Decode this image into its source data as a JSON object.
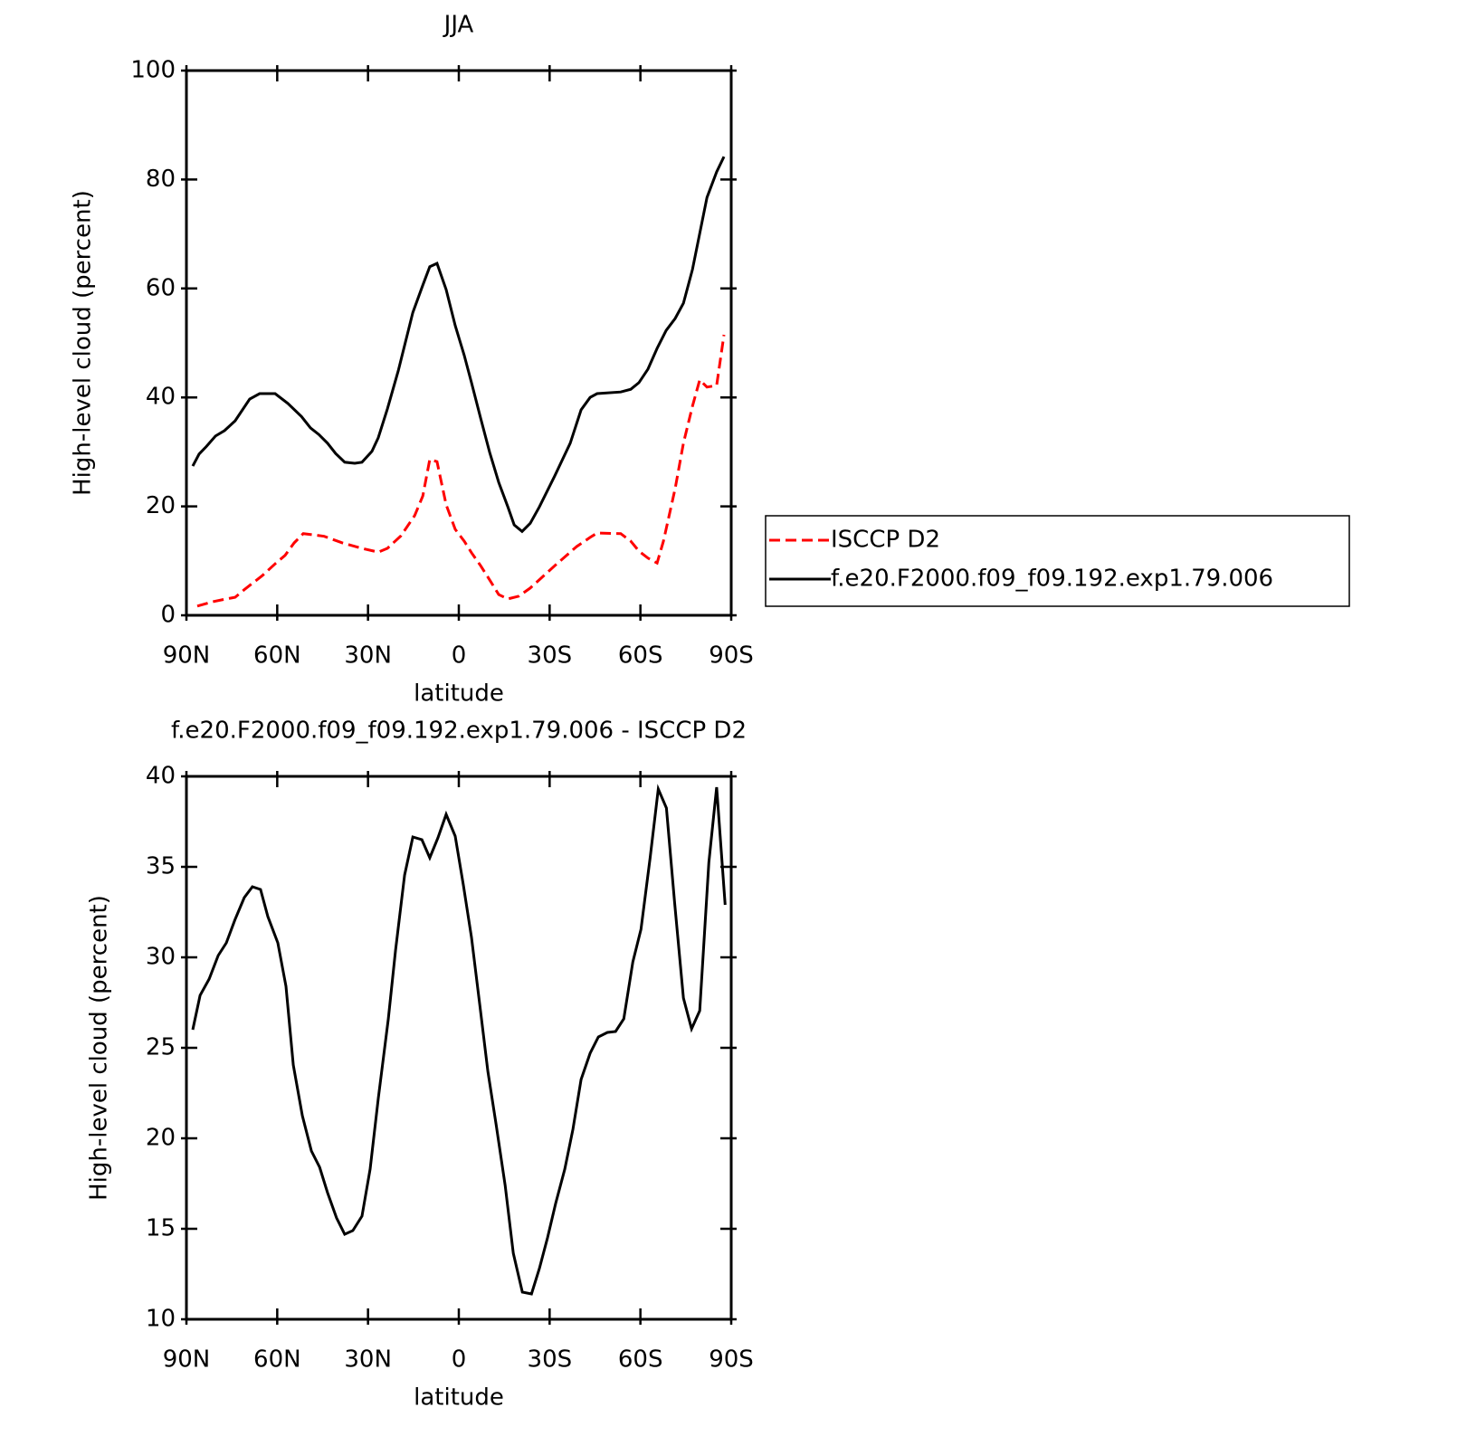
{
  "chart_data": [
    {
      "type": "line",
      "title": "JJA",
      "x_label": "latitude",
      "y_label": "High-level cloud (percent)",
      "xlim": [
        90,
        -90
      ],
      "xticks": [
        {
          "value": 90,
          "label": "90N"
        },
        {
          "value": 60,
          "label": "60N"
        },
        {
          "value": 30,
          "label": "30N"
        },
        0,
        {
          "value": -30,
          "label": "30S"
        },
        {
          "value": -60,
          "label": "60S"
        },
        {
          "value": -90,
          "label": "90S"
        }
      ],
      "ylim": [
        0,
        100
      ],
      "yticks": [
        0,
        20,
        40,
        60,
        80,
        100
      ],
      "legend": "right",
      "series": [
        {
          "name": "ISCCP D2",
          "color": "#ff0000",
          "dash": true,
          "x": [
            86.4,
            81.3,
            76.8,
            73.9,
            70.9,
            64.9,
            60.4,
            57.4,
            54.4,
            51.4,
            48.4,
            44.5,
            38.5,
            32,
            26.6,
            23.6,
            19.1,
            14.6,
            11.9,
            9.6,
            7.2,
            4.2,
            1.2,
            -1.8,
            -4.2,
            -7.2,
            -10.2,
            -13.2,
            -16.2,
            -19.8,
            -23.6,
            -31.7,
            -38.9,
            -43.4,
            -45.7,
            -53.5,
            -56.8,
            -59.5,
            -62.5,
            -65.5,
            -67.6,
            -71.5,
            -74.2,
            -77.2,
            -79.6,
            -82,
            -85.2,
            -87.6
          ],
          "values": [
            1.7,
            2.5,
            3,
            3.3,
            4.7,
            7.3,
            9.6,
            11,
            13.3,
            15,
            14.8,
            14.5,
            13.3,
            12.3,
            11.6,
            12.3,
            14.6,
            18.3,
            21.9,
            28.6,
            28.2,
            20.3,
            15.8,
            13.6,
            11.5,
            9.1,
            6.5,
            3.8,
            3,
            3.5,
            5,
            9.1,
            12.6,
            14.3,
            15.1,
            15,
            13.6,
            11.8,
            10.5,
            9.6,
            13.6,
            23.3,
            31.6,
            38.4,
            43.2,
            41.9,
            42.2,
            51.5
          ]
        },
        {
          "name": "f.e20.F2000.f09_f09.192.exp1.79.006",
          "color": "#000000",
          "dash": false,
          "x": [
            87.9,
            85.8,
            83.4,
            80.4,
            77.4,
            73.9,
            69.1,
            65.8,
            60.7,
            56.5,
            52,
            49,
            46.3,
            43.4,
            40.7,
            37.7,
            34.4,
            32,
            28.7,
            26.6,
            23.6,
            20,
            15.2,
            11.9,
            9.6,
            7.2,
            4.2,
            1.2,
            -1.8,
            -4.2,
            -7.2,
            -10.2,
            -13.2,
            -16.2,
            -18.3,
            -20.9,
            -23.6,
            -26.6,
            -31.7,
            -36.8,
            -40.4,
            -43.4,
            -45.7,
            -53.5,
            -56.8,
            -59.5,
            -62.5,
            -65.5,
            -68.5,
            -71.5,
            -74.2,
            -77.2,
            -82,
            -85.2,
            -87.6
          ],
          "values": [
            27.4,
            29.6,
            31,
            32.9,
            33.9,
            35.7,
            39.7,
            40.7,
            40.7,
            38.9,
            36.5,
            34.4,
            33.2,
            31.6,
            29.7,
            28.1,
            27.9,
            28.1,
            30.1,
            32.6,
            37.9,
            44.9,
            55.6,
            60.6,
            64,
            64.6,
            59.8,
            53.2,
            47.7,
            42.7,
            36.2,
            29.9,
            24.4,
            19.9,
            16.6,
            15.4,
            16.9,
            19.9,
            25.6,
            31.6,
            37.7,
            40,
            40.7,
            41,
            41.5,
            42.7,
            45.2,
            49,
            52.3,
            54.5,
            57.3,
            63.5,
            76.7,
            81.4,
            84.2
          ]
        }
      ]
    },
    {
      "type": "line",
      "title": "f.e20.F2000.f09_f09.192.exp1.79.006 - ISCCP D2",
      "x_label": "latitude",
      "y_label": "High-level cloud (percent)",
      "xlim": [
        90,
        -90
      ],
      "xticks": [
        {
          "value": 90,
          "label": "90N"
        },
        {
          "value": 60,
          "label": "60N"
        },
        {
          "value": 30,
          "label": "30N"
        },
        0,
        {
          "value": -30,
          "label": "30S"
        },
        {
          "value": -60,
          "label": "60S"
        },
        {
          "value": -90,
          "label": "90S"
        }
      ],
      "ylim": [
        10,
        40
      ],
      "yticks": [
        10,
        15,
        20,
        25,
        30,
        35,
        40
      ],
      "series": [
        {
          "color": "#000000",
          "dash": false,
          "x": [
            87.9,
            85.5,
            82.5,
            79.5,
            76.8,
            73.9,
            70.9,
            68.2,
            65.5,
            63.1,
            59.8,
            57.1,
            54.7,
            51.7,
            48.7,
            46,
            43.4,
            40.4,
            37.7,
            35,
            32,
            29.3,
            26.6,
            23.3,
            20.9,
            17.9,
            15.2,
            12.2,
            9.6,
            6.9,
            4.2,
            1.2,
            -1.5,
            -4.2,
            -6.9,
            -9.6,
            -12.3,
            -15.3,
            -18,
            -21,
            -24,
            -26.6,
            -29.3,
            -32,
            -35,
            -37.7,
            -40.4,
            -43.4,
            -46.1,
            -49.1,
            -51.8,
            -54.5,
            -57.5,
            -60.2,
            -63.2,
            -65.9,
            -68.6,
            -71.3,
            -74.2,
            -76.9,
            -79.6,
            -82.6,
            -85.2,
            -88
          ],
          "values": [
            26,
            27.9,
            28.8,
            30.1,
            30.8,
            32.1,
            33.3,
            33.9,
            33.75,
            32.25,
            30.8,
            28.4,
            24.05,
            21.25,
            19.3,
            18.4,
            17,
            15.6,
            14.7,
            14.9,
            15.7,
            18.3,
            22.2,
            26.6,
            30.4,
            34.55,
            36.65,
            36.5,
            35.5,
            36.6,
            37.9,
            36.7,
            34,
            31.1,
            27.4,
            23.7,
            20.8,
            17.4,
            13.65,
            11.5,
            11.4,
            12.8,
            14.5,
            16.4,
            18.3,
            20.5,
            23.25,
            24.7,
            25.6,
            25.85,
            25.9,
            26.6,
            29.75,
            31.55,
            35.5,
            39.3,
            38.25,
            33,
            27.75,
            26.05,
            27.05,
            35.25,
            39.4,
            32.9
          ]
        }
      ]
    }
  ]
}
